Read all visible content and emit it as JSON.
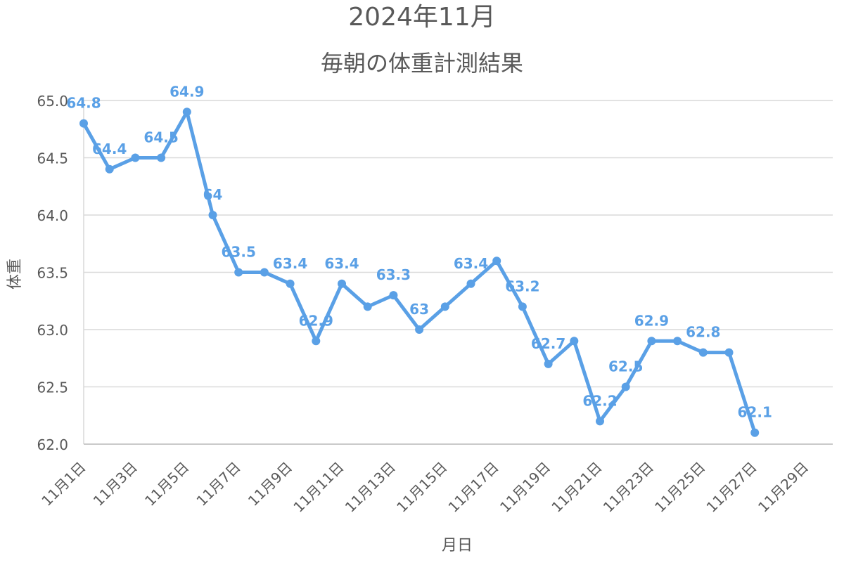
{
  "chart_data": {
    "type": "line",
    "title": "2024年11月",
    "subtitle": "毎朝の体重計測結果",
    "xlabel": "月日",
    "ylabel": "体重",
    "ylim": [
      62.0,
      65.0
    ],
    "yticks": [
      "62.0",
      "62.5",
      "63.0",
      "63.5",
      "64.0",
      "64.5",
      "65.0"
    ],
    "xtick_labels": [
      "11月1日",
      "11月3日",
      "11月5日",
      "11月7日",
      "11月9日",
      "11月11日",
      "11月13日",
      "11月15日",
      "11月17日",
      "11月19日",
      "11月21日",
      "11月23日",
      "11月25日",
      "11月27日",
      "11月29日"
    ],
    "grid": true,
    "legend": "none",
    "colors": {
      "series": "#5aa0e6",
      "grid": "#d9d9d9",
      "text": "#595959"
    },
    "series": [
      {
        "days": [
          1,
          2,
          3,
          4,
          5,
          6,
          7,
          8,
          9,
          10,
          11,
          12,
          13,
          14,
          15,
          16,
          17,
          18,
          19,
          20,
          21,
          22,
          23,
          24,
          25,
          26,
          27
        ],
        "values": [
          64.8,
          64.4,
          64.5,
          64.5,
          64.9,
          64.0,
          63.5,
          63.5,
          63.4,
          62.9,
          63.4,
          63.2,
          63.3,
          63.0,
          63.2,
          63.4,
          63.6,
          63.2,
          62.7,
          62.9,
          62.2,
          62.5,
          62.9,
          62.9,
          62.8,
          62.8,
          62.1
        ]
      }
    ],
    "data_labels": [
      {
        "day": 1,
        "text": "64.8"
      },
      {
        "day": 2,
        "text": "64.4"
      },
      {
        "day": 4,
        "text": "64.5"
      },
      {
        "day": 5,
        "text": "64.9"
      },
      {
        "day": 6,
        "text": "64"
      },
      {
        "day": 7,
        "text": "63.5"
      },
      {
        "day": 9,
        "text": "63.4"
      },
      {
        "day": 10,
        "text": "62.9"
      },
      {
        "day": 11,
        "text": "63.4"
      },
      {
        "day": 13,
        "text": "63.3"
      },
      {
        "day": 14,
        "text": "63"
      },
      {
        "day": 16,
        "text": "63.4"
      },
      {
        "day": 18,
        "text": "63.2"
      },
      {
        "day": 19,
        "text": "62.7"
      },
      {
        "day": 21,
        "text": "62.2"
      },
      {
        "day": 22,
        "text": "62.5"
      },
      {
        "day": 23,
        "text": "62.9"
      },
      {
        "day": 25,
        "text": "62.8"
      },
      {
        "day": 27,
        "text": "62.1"
      }
    ]
  }
}
